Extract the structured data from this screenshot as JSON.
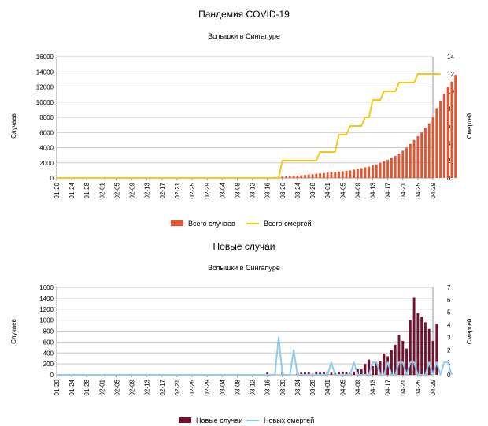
{
  "chart_data": [
    {
      "type": "bar-line",
      "title": "Пандемия COVID-19",
      "subtitle": "Вспышки в Сингапуре",
      "ylabel": "Случаев",
      "y2label": "Смертей",
      "ylim": [
        0,
        16000
      ],
      "yticks": [
        "0",
        "2000",
        "4000",
        "6000",
        "8000",
        "10000",
        "12000",
        "14000",
        "16000"
      ],
      "y2lim": [
        0,
        14
      ],
      "y2ticks": [
        "0",
        "2",
        "4",
        "6",
        "8",
        "10",
        "12",
        "14"
      ],
      "xticks": [
        "01-20",
        "01-24",
        "01-28",
        "02-01",
        "02-05",
        "02-09",
        "02-13",
        "02-17",
        "02-21",
        "02-25",
        "02-29",
        "03-04",
        "03-08",
        "03-12",
        "03-16",
        "03-20",
        "03-24",
        "03-28",
        "04-01",
        "04-05",
        "04-09",
        "04-13",
        "04-17",
        "04-21",
        "04-25",
        "04-29"
      ],
      "x_start": "01-20",
      "grid": true,
      "legend": "bottom",
      "colors": {
        "bars": "#e8532b",
        "line": "#f2c913"
      },
      "series": [
        {
          "name": "Всего случаев",
          "kind": "bar",
          "axis": "left",
          "values": [
            0,
            0,
            0,
            0,
            0,
            0,
            0,
            0,
            0,
            0,
            0,
            0,
            0,
            0,
            0,
            0,
            0,
            0,
            0,
            0,
            0,
            0,
            0,
            0,
            0,
            0,
            0,
            0,
            0,
            0,
            0,
            0,
            0,
            0,
            0,
            0,
            0,
            0,
            0,
            0,
            0,
            0,
            0,
            0,
            0,
            0,
            0,
            0,
            0,
            0,
            0,
            0,
            0,
            0,
            0,
            0,
            0,
            100,
            120,
            150,
            180,
            210,
            240,
            270,
            300,
            350,
            400,
            450,
            500,
            550,
            600,
            650,
            700,
            750,
            800,
            850,
            900,
            950,
            1000,
            1100,
            1200,
            1300,
            1400,
            1500,
            1650,
            1800,
            2000,
            2200,
            2400,
            2600,
            2900,
            3200,
            3600,
            4000,
            4500,
            5000,
            5500,
            6000,
            6600,
            7200,
            8000,
            9200,
            10200,
            11100,
            12000,
            12700,
            13600
          ]
        },
        {
          "name": "Всего смертей",
          "kind": "line",
          "axis": "right",
          "values": [
            0,
            0,
            0,
            0,
            0,
            0,
            0,
            0,
            0,
            0,
            0,
            0,
            0,
            0,
            0,
            0,
            0,
            0,
            0,
            0,
            0,
            0,
            0,
            0,
            0,
            0,
            0,
            0,
            0,
            0,
            0,
            0,
            0,
            0,
            0,
            0,
            0,
            0,
            0,
            0,
            0,
            0,
            0,
            0,
            0,
            0,
            0,
            0,
            0,
            0,
            0,
            0,
            0,
            0,
            0,
            0,
            0,
            0,
            0,
            0,
            2,
            2,
            2,
            2,
            2,
            2,
            2,
            2,
            2,
            2,
            3,
            3,
            3,
            3,
            3,
            5,
            5,
            5,
            6,
            6,
            6,
            6,
            7,
            7,
            9,
            9,
            9,
            10,
            10,
            10,
            10,
            11,
            11,
            11,
            11,
            11,
            12,
            12,
            12,
            12,
            12,
            12,
            12
          ]
        }
      ]
    },
    {
      "type": "bar-line",
      "title": "Новые случаи",
      "subtitle": "Вспышки в Сингапуре",
      "ylabel": "Случаев",
      "y2label": "Смертей",
      "ylim": [
        0,
        1600
      ],
      "yticks": [
        "0",
        "200",
        "400",
        "600",
        "800",
        "1000",
        "1200",
        "1400",
        "1600"
      ],
      "y2lim": [
        0,
        7
      ],
      "y2ticks": [
        "0",
        "1",
        "2",
        "3",
        "4",
        "5",
        "6",
        "7"
      ],
      "xticks": [
        "01-20",
        "01-24",
        "01-28",
        "02-01",
        "02-05",
        "02-09",
        "02-13",
        "02-17",
        "02-21",
        "02-25",
        "02-29",
        "03-04",
        "03-08",
        "03-12",
        "03-16",
        "03-20",
        "03-24",
        "03-28",
        "04-01",
        "04-05",
        "04-09",
        "04-13",
        "04-17",
        "04-21",
        "04-25",
        "04-29"
      ],
      "x_start": "01-20",
      "grid": true,
      "legend": "bottom",
      "colors": {
        "bars": "#7b0e2d",
        "line": "#8fcbef"
      },
      "series": [
        {
          "name": "Новые случаи",
          "kind": "bar",
          "axis": "left",
          "values": [
            0,
            0,
            0,
            0,
            0,
            0,
            0,
            0,
            0,
            0,
            0,
            0,
            0,
            0,
            0,
            0,
            0,
            0,
            0,
            0,
            0,
            0,
            0,
            0,
            0,
            0,
            0,
            0,
            0,
            0,
            0,
            0,
            0,
            0,
            0,
            0,
            0,
            0,
            0,
            0,
            0,
            0,
            0,
            0,
            0,
            0,
            0,
            0,
            0,
            0,
            0,
            0,
            0,
            0,
            0,
            0,
            40,
            0,
            0,
            0,
            40,
            0,
            0,
            0,
            50,
            40,
            40,
            50,
            20,
            60,
            40,
            50,
            60,
            40,
            30,
            50,
            60,
            50,
            40,
            60,
            100,
            100,
            200,
            280,
            160,
            220,
            260,
            390,
            340,
            450,
            550,
            730,
            620,
            480,
            1000,
            1420,
            1130,
            1060,
            960,
            840,
            620,
            930
          ]
        },
        {
          "name": "Новых смертей",
          "kind": "line",
          "axis": "right",
          "values": [
            0,
            0,
            0,
            0,
            0,
            0,
            0,
            0,
            0,
            0,
            0,
            0,
            0,
            0,
            0,
            0,
            0,
            0,
            0,
            0,
            0,
            0,
            0,
            0,
            0,
            0,
            0,
            0,
            0,
            0,
            0,
            0,
            0,
            0,
            0,
            0,
            0,
            0,
            0,
            0,
            0,
            0,
            0,
            0,
            0,
            0,
            0,
            0,
            0,
            0,
            0,
            0,
            0,
            0,
            0,
            0,
            0,
            0,
            0,
            3,
            0,
            0,
            0,
            2,
            0,
            0,
            0,
            0,
            0,
            0,
            0,
            0,
            0,
            1,
            0,
            0,
            0,
            0,
            0,
            1,
            0,
            0,
            0,
            0,
            1,
            1,
            0,
            0,
            1,
            0,
            0,
            1,
            1,
            0,
            1,
            1,
            0,
            0,
            0,
            1,
            0,
            1,
            0,
            1,
            1,
            0
          ]
        }
      ]
    }
  ]
}
